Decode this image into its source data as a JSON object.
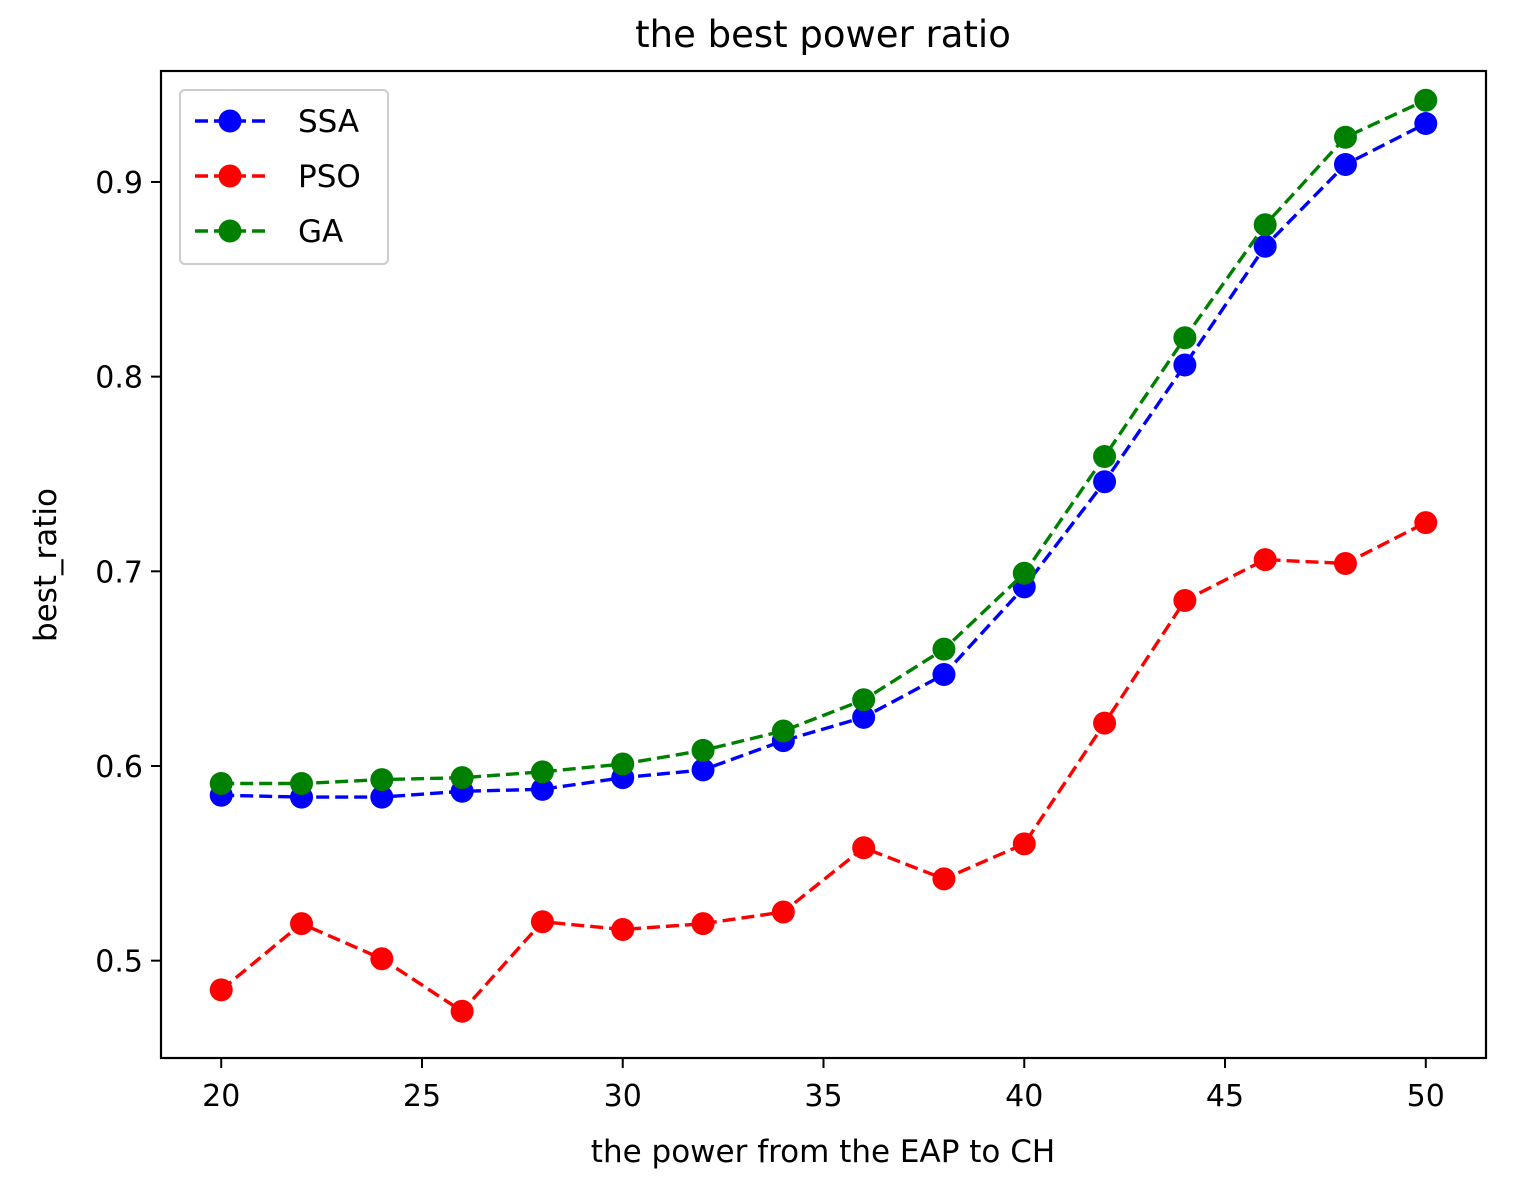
{
  "chart_data": {
    "type": "line",
    "title": "the best power ratio",
    "xlabel": "the power from the EAP to CH",
    "ylabel": "best_ratio",
    "x": [
      20,
      22,
      24,
      26,
      28,
      30,
      32,
      34,
      36,
      38,
      40,
      42,
      44,
      46,
      48,
      50
    ],
    "xlim": [
      18.5,
      51.5
    ],
    "ylim": [
      0.45,
      0.957
    ],
    "xticks": [
      "20",
      "25",
      "30",
      "35",
      "40",
      "45",
      "50"
    ],
    "yticks": [
      "0.5",
      "0.6",
      "0.7",
      "0.8",
      "0.9"
    ],
    "grid": false,
    "legend_position": "top-left",
    "series": [
      {
        "name": "SSA",
        "color": "#0000ff",
        "style": "dashed with circle markers",
        "values": [
          0.585,
          0.584,
          0.584,
          0.587,
          0.588,
          0.594,
          0.598,
          0.613,
          0.625,
          0.647,
          0.692,
          0.746,
          0.806,
          0.867,
          0.909,
          0.93
        ]
      },
      {
        "name": "PSO",
        "color": "#ff0000",
        "style": "dashed with circle markers",
        "values": [
          0.485,
          0.519,
          0.501,
          0.474,
          0.52,
          0.516,
          0.519,
          0.525,
          0.558,
          0.542,
          0.56,
          0.622,
          0.685,
          0.706,
          0.704,
          0.725
        ]
      },
      {
        "name": "GA",
        "color": "#008000",
        "style": "dashed with circle markers",
        "values": [
          0.591,
          0.591,
          0.593,
          0.594,
          0.597,
          0.601,
          0.608,
          0.618,
          0.634,
          0.66,
          0.699,
          0.759,
          0.82,
          0.878,
          0.923,
          0.942
        ]
      }
    ]
  }
}
